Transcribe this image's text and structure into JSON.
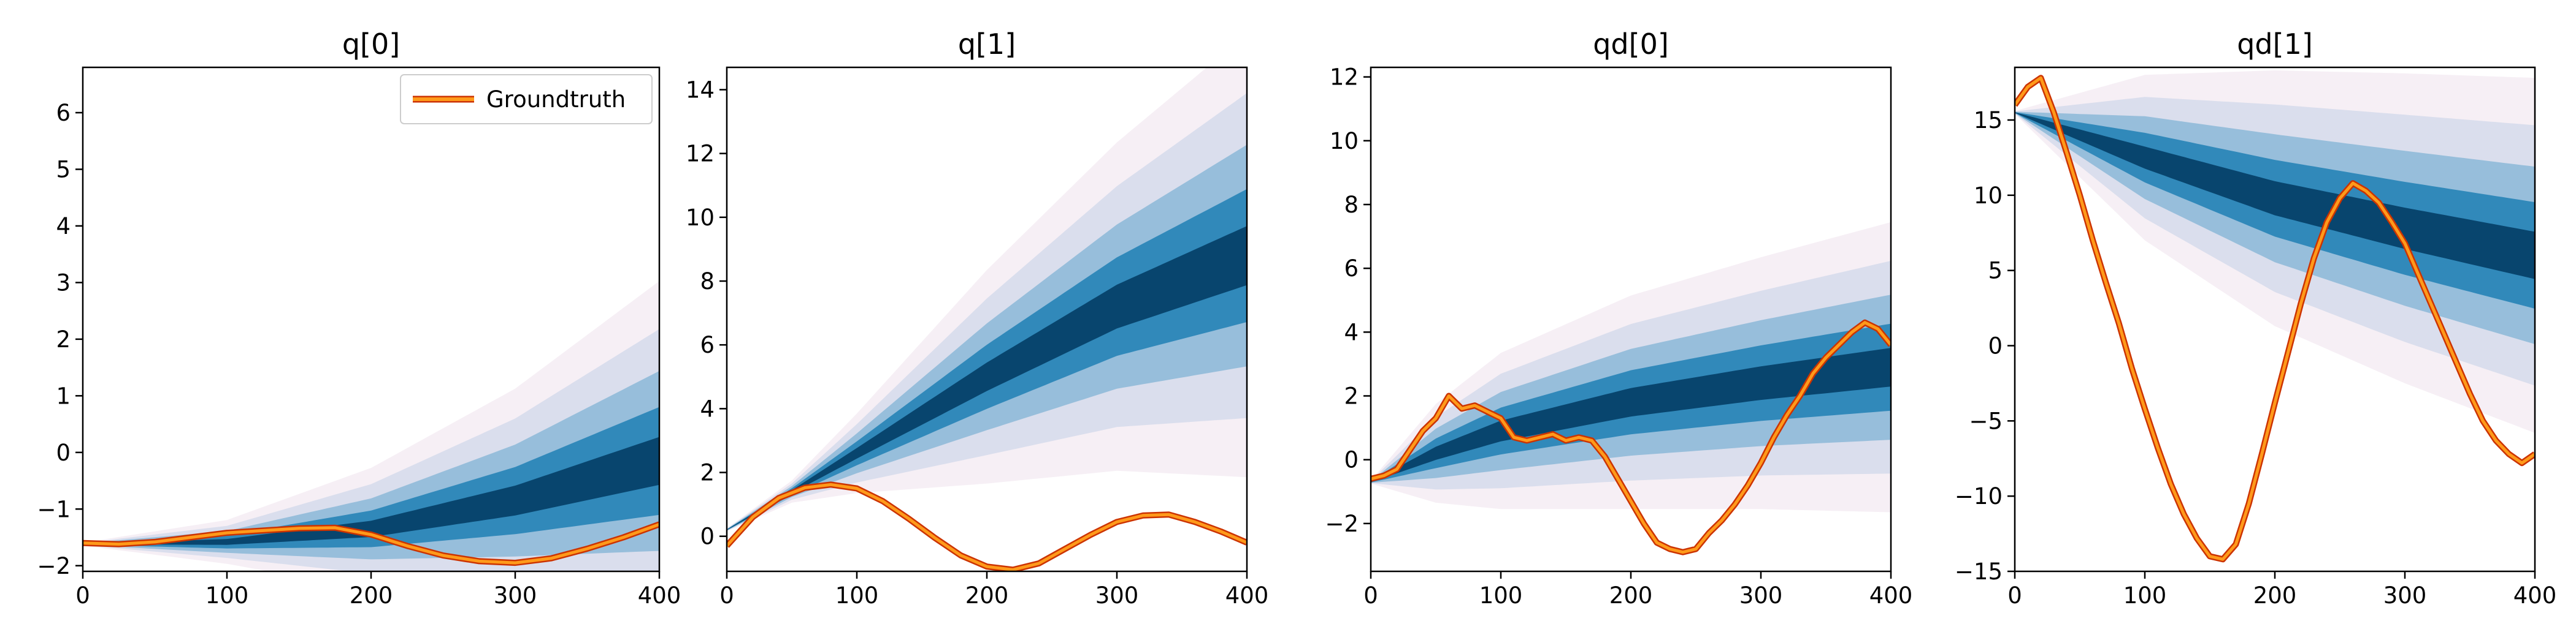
{
  "chart_data": [
    {
      "type": "line",
      "title": "q[0]",
      "xlim": [
        0,
        400
      ],
      "ylim": [
        -2.1,
        6.8
      ],
      "xticks": [
        0,
        100,
        200,
        300,
        400
      ],
      "yticks": [
        -2,
        -1,
        0,
        1,
        2,
        3,
        4,
        5,
        6
      ],
      "legend": {
        "position": "top-right",
        "entries": [
          "Groundtruth"
        ]
      },
      "band": {
        "x": [
          0,
          100,
          200,
          300,
          400
        ],
        "mean": [
          -1.62,
          -1.58,
          -1.35,
          -0.85,
          -0.15
        ],
        "std": [
          0.0,
          0.12,
          0.35,
          0.65,
          1.05
        ]
      },
      "series": [
        {
          "name": "Groundtruth",
          "x": [
            0,
            25,
            50,
            75,
            100,
            125,
            150,
            175,
            200,
            225,
            250,
            275,
            300,
            325,
            350,
            375,
            400
          ],
          "values": [
            -1.6,
            -1.62,
            -1.58,
            -1.5,
            -1.42,
            -1.38,
            -1.34,
            -1.33,
            -1.45,
            -1.65,
            -1.82,
            -1.92,
            -1.95,
            -1.87,
            -1.7,
            -1.5,
            -1.27
          ]
        }
      ]
    },
    {
      "type": "line",
      "title": "q[1]",
      "xlim": [
        0,
        400
      ],
      "ylim": [
        -1.1,
        14.7
      ],
      "xticks": [
        0,
        100,
        200,
        300,
        400
      ],
      "yticks": [
        0,
        2,
        4,
        6,
        8,
        10,
        12,
        14
      ],
      "band": {
        "x": [
          0,
          50,
          100,
          200,
          300,
          400
        ],
        "mean": [
          0.2,
          1.4,
          2.6,
          5.0,
          7.2,
          8.8
        ],
        "std": [
          0.0,
          0.1,
          0.4,
          1.1,
          1.7,
          2.3
        ]
      },
      "series": [
        {
          "name": "Groundtruth",
          "x": [
            0,
            20,
            40,
            60,
            80,
            100,
            120,
            140,
            160,
            180,
            200,
            220,
            240,
            260,
            280,
            300,
            320,
            340,
            360,
            380,
            400
          ],
          "values": [
            -0.3,
            0.6,
            1.2,
            1.52,
            1.62,
            1.5,
            1.1,
            0.55,
            -0.05,
            -0.6,
            -0.95,
            -1.05,
            -0.85,
            -0.4,
            0.05,
            0.45,
            0.65,
            0.68,
            0.45,
            0.15,
            -0.2
          ]
        }
      ]
    },
    {
      "type": "line",
      "title": "qd[0]",
      "xlim": [
        0,
        400
      ],
      "ylim": [
        -3.5,
        12.3
      ],
      "xticks": [
        0,
        100,
        200,
        300,
        400
      ],
      "yticks": [
        -2,
        0,
        2,
        4,
        6,
        8,
        10,
        12
      ],
      "band": {
        "x": [
          0,
          50,
          100,
          200,
          300,
          400
        ],
        "mean": [
          -0.7,
          0.2,
          0.9,
          1.8,
          2.4,
          2.9
        ],
        "std": [
          0.0,
          0.5,
          0.8,
          1.1,
          1.3,
          1.5
        ]
      },
      "series": [
        {
          "name": "Groundtruth",
          "x": [
            0,
            10,
            20,
            30,
            40,
            50,
            60,
            70,
            80,
            90,
            100,
            110,
            120,
            130,
            140,
            150,
            160,
            170,
            180,
            190,
            200,
            210,
            220,
            230,
            240,
            250,
            260,
            270,
            280,
            290,
            300,
            310,
            320,
            330,
            340,
            350,
            360,
            370,
            380,
            390,
            400
          ],
          "values": [
            -0.6,
            -0.5,
            -0.3,
            0.3,
            0.9,
            1.3,
            2.0,
            1.6,
            1.7,
            1.5,
            1.3,
            0.7,
            0.6,
            0.7,
            0.8,
            0.6,
            0.7,
            0.6,
            0.1,
            -0.6,
            -1.3,
            -2.0,
            -2.6,
            -2.8,
            -2.9,
            -2.8,
            -2.3,
            -1.9,
            -1.4,
            -0.8,
            -0.1,
            0.7,
            1.4,
            2.0,
            2.7,
            3.2,
            3.6,
            4.0,
            4.3,
            4.1,
            3.6
          ]
        }
      ]
    },
    {
      "type": "line",
      "title": "qd[1]",
      "xlim": [
        0,
        400
      ],
      "ylim": [
        -15,
        18.5
      ],
      "xticks": [
        0,
        100,
        200,
        300,
        400
      ],
      "yticks": [
        -15,
        -10,
        -5,
        0,
        5,
        10,
        15
      ],
      "band": {
        "x": [
          0,
          100,
          200,
          300,
          400
        ],
        "mean": [
          15.5,
          12.5,
          9.8,
          7.8,
          6.0
        ],
        "std": [
          0.0,
          1.8,
          2.8,
          3.4,
          3.9
        ]
      },
      "series": [
        {
          "name": "Groundtruth",
          "x": [
            0,
            10,
            20,
            30,
            40,
            50,
            60,
            70,
            80,
            90,
            100,
            110,
            120,
            130,
            140,
            150,
            160,
            170,
            180,
            190,
            200,
            210,
            220,
            230,
            240,
            250,
            260,
            270,
            280,
            290,
            300,
            310,
            320,
            330,
            340,
            350,
            360,
            370,
            380,
            390,
            400
          ],
          "values": [
            16.0,
            17.2,
            17.8,
            15.5,
            12.8,
            10.0,
            7.0,
            4.2,
            1.5,
            -1.5,
            -4.2,
            -6.8,
            -9.2,
            -11.2,
            -12.8,
            -14.0,
            -14.2,
            -13.2,
            -10.5,
            -7.2,
            -3.8,
            -0.5,
            2.8,
            5.8,
            8.2,
            9.8,
            10.8,
            10.3,
            9.5,
            8.2,
            6.8,
            4.8,
            2.8,
            0.8,
            -1.2,
            -3.2,
            -5.0,
            -6.3,
            -7.2,
            -7.8,
            -7.2
          ]
        }
      ]
    }
  ]
}
